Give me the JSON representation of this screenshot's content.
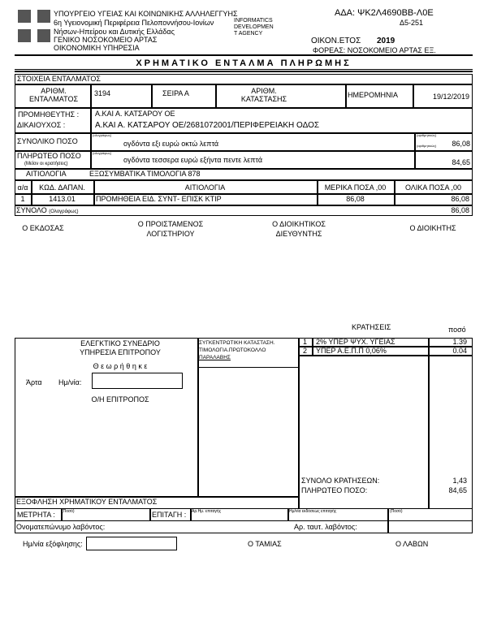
{
  "header": {
    "ministry": "ΥΠΟΥΡΓΕΙΟ ΥΓΕΙΑΣ ΚΑΙ ΚΟΙΝΩΝΙΚΗΣ ΑΛΛΗΛΕΓΓΥΗΣ",
    "region_1": "6η Υγειονομική Περιφέρεια Πελοποννήσου-Ιονίων",
    "region_2": "Νήσων-Ηπείρου και Δυτικής Ελλάδας",
    "hospital": "ΓΕΝΙΚΟ ΝΟΣΟΚΟΜΕΙΟ ΑΡΤΑΣ",
    "service": "ΟΙΚΟΝΟΜΙΚΗ ΥΠΗΡΕΣΙΑ",
    "stamp_1": "INFORMATICS",
    "stamp_2": "DEVELOPMEN",
    "stamp_3": "T AGENCY",
    "ada": "ΑΔΑ: ΨΚ2Λ4690ΒΒ-Λ0Ε",
    "code": "Δ5-251",
    "fiscal_year_label": "ΟΙΚΟΝ.ΕΤΟΣ",
    "fiscal_year": "2019",
    "entity": "ΦΟΡΕΑΣ: ΝΟΣΟΚΟΜΕΙΟ ΑΡΤΑΣ ΕΞ."
  },
  "title": "ΧΡΗΜΑΤΙΚΟ ΕΝΤΑΛΜΑ ΠΛΗΡΩΜΗΣ",
  "order": {
    "section": "ΣΤΟΙΧΕΙΑ ΕΝΤΑΛΜΑΤΟΣ",
    "number_label": "ΑΡΙΘΜ. ΕΝΤΑΛΜΑΤΟΣ",
    "number": "3194",
    "series": "ΣΕΙΡΑ Α",
    "status_label": "ΑΡΙΘΜ. ΚΑΤΑΣΤΑΣΗΣ",
    "date_label": "ΗΜΕΡΟΜΗΝΙΑ",
    "date": "19/12/2019",
    "supplier_label": "ΠΡΟΜΗΘΕΥΤΗΣ :",
    "supplier": "Α.ΚΑΙ Α. ΚΑΤΣΑΡΟΥ ΟΕ",
    "beneficiary_label": "ΔΙΚΑΙΟΥΧΟΣ :",
    "beneficiary": "Α.ΚΑΙ Α. ΚΑΤΣΑΡΟΥ ΟΕ/2681072001/ΠΕΡΙΦΕΡΕΙΑΚΗ ΟΔΟΣ",
    "total_label": "ΣΥΝΟΛΙΚΟ ΠΟΣΟ",
    "in_words_hint": "(ολογράφως)",
    "total_words": "ογδόντα εξι  ευρώ οκτώ λεπτά",
    "in_numbers_hint": "(αριθμητικώς)",
    "total": "86,08",
    "payable_label": "ΠΛΗΡΩΤΕΟ ΠΟΣΟ",
    "payable_sub": "(Μείον οι κρατήσεις)",
    "payable_words": "ογδόντα τεσσερα  ευρώ εξήντα πεντε λεπτά",
    "payable": "84,65",
    "reason_label": "ΑΙΤΙΟΛΟΓΙΑ",
    "reason": "ΕΞΩΣΥΜΒΑΤΙΚΑ ΤΙΜΟΛΟΓΙΑ  878",
    "columns": [
      "α/α",
      "ΚΩΔ. ΔΑΠΑΝ.",
      "ΑΙΤΙΟΛΟΓΙΑ",
      "ΜΕΡΙΚΑ ΠΟΣΑ ,00",
      "ΟΛΙΚΑ ΠΟΣΑ ,00"
    ],
    "rows": [
      {
        "no": "1",
        "code": "1413.01",
        "desc": "ΠΡΟΜΗΘΕΙΑ ΕΙΔ. ΣΥΝΤ- ΕΠΙΣΚ ΚΤΙΡ",
        "partial": "86,08",
        "total": "86,08"
      }
    ],
    "sum_label": "ΣΥΝΟΛΟ",
    "sum_hint": "(Ολογράφως)",
    "sum": "86,08"
  },
  "signatures": {
    "issuer": "Ο ΕΚΔΟΣΑΣ",
    "accounting_1": "Ο ΠΡΟΙΣΤΑΜΕΝΟΣ",
    "accounting_2": "ΛΟΓΙΣΤΗΡΙΟΥ",
    "admin_1": "Ο ΔΙΟΙΚΗΤΙΚΟΣ",
    "admin_2": "ΔΙΕΥΘΥΝΤΗΣ",
    "director": "Ο ΔΙΟΙΚΗΤΗΣ"
  },
  "audit": {
    "line1": "ΕΛΕΓΚΤΙΚΟ ΣΥΝΕΔΡΙΟ",
    "line2": "ΥΠΗΡΕΣΙΑ ΕΠΙΤΡΟΠΟΥ",
    "approved": "Θ ε ω ρ ή θ η κ ε",
    "place": "Άρτα",
    "date_label": "Ημ/νία:",
    "commissioner": "Ο/Η ΕΠΙΤΡΟΠΟΣ"
  },
  "summary_box": {
    "line1": "ΣΥΓΚΕΝΤΡΩΤΙΚΗ ΚΑΤΑΣΤΑΣΗ.",
    "line2": "ΤΙΜΟΛΟΓΙΑ.ΠΡΩΤΟΚΟΛΛΟ",
    "line3": "ΠΑΡΑΛΑΒΗΣ"
  },
  "deductions": {
    "title": "ΚΡΑΤΗΣΕΙΣ",
    "amount_label": "ποσό",
    "items": [
      {
        "no": "1",
        "name": "2% ΥΠΕΡ ΨΥΧ. ΥΓΕΙΑΣ",
        "amount": "1.39"
      },
      {
        "no": "2",
        "name": "ΥΠΕΡ Α.Ε.Π.Π 0,06%",
        "amount": "0.04"
      }
    ],
    "total_label": "ΣΥΝΟΛΟ ΚΡΑΤΗΣΕΩΝ:",
    "total": "1,43",
    "payable_label": "ΠΛΗΡΩΤΕΟ ΠΟΣΟ:",
    "payable": "84,65"
  },
  "settlement": {
    "title": "ΕΞΟΦΛΗΣΗ ΧΡΗΜΑΤΙΚΟΥ ΕΝΤΑΛΜΑΤΟΣ",
    "cash": "ΜΕΤΡΗΤΑ :",
    "cash_hint": "(Ποσό)",
    "check": "ΕΠΙΤΑΓΗ :",
    "check_no": "Αρ.Ημ. επιταγής",
    "check_date": "Ημ/νία εκδόσεως επιταγής",
    "check_amount": "(Ποσό)",
    "recipient": "Ονοματεπώνυμο λαβόντος:",
    "id": "Αρ. ταυτ. λαβόντος:",
    "paid_date": "Ημ/νία εξόφλησης:",
    "cashier": "Ο ΤΑΜΙΑΣ",
    "receiver": "Ο ΛΑΒΩΝ"
  }
}
